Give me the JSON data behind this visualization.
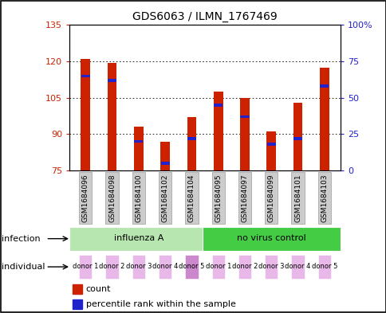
{
  "title": "GDS6063 / ILMN_1767469",
  "samples": [
    "GSM1684096",
    "GSM1684098",
    "GSM1684100",
    "GSM1684102",
    "GSM1684104",
    "GSM1684095",
    "GSM1684097",
    "GSM1684099",
    "GSM1684101",
    "GSM1684103"
  ],
  "count_values": [
    121.0,
    119.5,
    93.0,
    87.0,
    97.0,
    107.5,
    105.0,
    91.0,
    103.0,
    117.5
  ],
  "percentile_values": [
    65,
    62,
    20,
    5,
    22,
    45,
    37,
    18,
    22,
    58
  ],
  "ylim_left": [
    75,
    135
  ],
  "ylim_right": [
    0,
    100
  ],
  "yticks_left": [
    75,
    90,
    105,
    120,
    135
  ],
  "yticks_right": [
    0,
    25,
    50,
    75,
    100
  ],
  "infection_groups": [
    {
      "label": "influenza A",
      "start": 0,
      "end": 5,
      "color": "#b8e6b0"
    },
    {
      "label": "no virus control",
      "start": 5,
      "end": 10,
      "color": "#44cc44"
    }
  ],
  "individual_labels": [
    "donor 1",
    "donor 2",
    "donor 3",
    "donor 4",
    "donor 5",
    "donor 1",
    "donor 2",
    "donor 3",
    "donor 4",
    "donor 5"
  ],
  "individual_colors": [
    "#e8b8e8",
    "#e8b8e8",
    "#e8b8e8",
    "#e8b8e8",
    "#cc88cc",
    "#e8b8e8",
    "#e8b8e8",
    "#e8b8e8",
    "#e8b8e8",
    "#e8b8e8"
  ],
  "bar_color": "#cc2200",
  "percentile_color": "#2222cc",
  "bar_width": 0.35,
  "bg_color": "#ffffff",
  "tick_color_left": "#cc2200",
  "tick_color_right": "#2222cc"
}
